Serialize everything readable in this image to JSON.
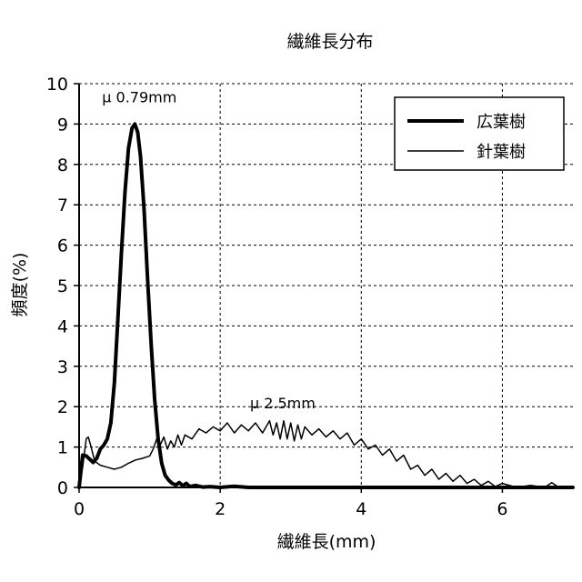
{
  "chart_data": {
    "type": "line",
    "title": "繊維長分布",
    "xlabel": "繊維長(mm)",
    "ylabel": "頻度(%)",
    "xlim": [
      0,
      7
    ],
    "ylim": [
      0,
      10
    ],
    "x_ticks": [
      0,
      2,
      4,
      6
    ],
    "y_ticks": [
      0,
      1,
      2,
      3,
      4,
      5,
      6,
      7,
      8,
      9,
      10
    ],
    "grid": true,
    "legend_position": "top-right",
    "series": [
      {
        "name": "広葉樹",
        "line": "thick",
        "color": "#000000",
        "points": [
          [
            0.0,
            0.0
          ],
          [
            0.05,
            0.8
          ],
          [
            0.1,
            0.78
          ],
          [
            0.15,
            0.7
          ],
          [
            0.2,
            0.62
          ],
          [
            0.25,
            0.72
          ],
          [
            0.3,
            0.95
          ],
          [
            0.35,
            1.05
          ],
          [
            0.4,
            1.2
          ],
          [
            0.45,
            1.6
          ],
          [
            0.5,
            2.6
          ],
          [
            0.55,
            4.2
          ],
          [
            0.6,
            5.8
          ],
          [
            0.65,
            7.3
          ],
          [
            0.7,
            8.4
          ],
          [
            0.75,
            8.9
          ],
          [
            0.79,
            9.0
          ],
          [
            0.83,
            8.8
          ],
          [
            0.87,
            8.2
          ],
          [
            0.92,
            6.9
          ],
          [
            0.97,
            5.2
          ],
          [
            1.02,
            3.6
          ],
          [
            1.07,
            2.2
          ],
          [
            1.12,
            1.2
          ],
          [
            1.17,
            0.6
          ],
          [
            1.22,
            0.3
          ],
          [
            1.27,
            0.18
          ],
          [
            1.32,
            0.1
          ],
          [
            1.37,
            0.06
          ],
          [
            1.42,
            0.12
          ],
          [
            1.47,
            0.04
          ],
          [
            1.52,
            0.1
          ],
          [
            1.57,
            0.02
          ],
          [
            1.65,
            0.05
          ],
          [
            1.75,
            0.01
          ],
          [
            1.85,
            0.02
          ],
          [
            2.0,
            0.0
          ],
          [
            2.2,
            0.03
          ],
          [
            2.4,
            0.0
          ],
          [
            3.0,
            0.0
          ],
          [
            4.0,
            0.0
          ],
          [
            5.0,
            0.0
          ],
          [
            6.0,
            0.0
          ],
          [
            7.0,
            0.0
          ]
        ]
      },
      {
        "name": "針葉樹",
        "line": "thin",
        "color": "#000000",
        "points": [
          [
            0.0,
            0.0
          ],
          [
            0.05,
            0.5
          ],
          [
            0.1,
            1.2
          ],
          [
            0.13,
            1.25
          ],
          [
            0.17,
            1.0
          ],
          [
            0.22,
            0.65
          ],
          [
            0.3,
            0.55
          ],
          [
            0.4,
            0.5
          ],
          [
            0.5,
            0.45
          ],
          [
            0.6,
            0.5
          ],
          [
            0.7,
            0.6
          ],
          [
            0.8,
            0.68
          ],
          [
            0.9,
            0.72
          ],
          [
            1.0,
            0.78
          ],
          [
            1.05,
            0.95
          ],
          [
            1.1,
            1.2
          ],
          [
            1.15,
            1.05
          ],
          [
            1.2,
            1.25
          ],
          [
            1.25,
            0.95
          ],
          [
            1.3,
            1.15
          ],
          [
            1.35,
            1.0
          ],
          [
            1.4,
            1.3
          ],
          [
            1.45,
            1.05
          ],
          [
            1.5,
            1.3
          ],
          [
            1.6,
            1.2
          ],
          [
            1.7,
            1.45
          ],
          [
            1.8,
            1.35
          ],
          [
            1.9,
            1.5
          ],
          [
            2.0,
            1.4
          ],
          [
            2.1,
            1.6
          ],
          [
            2.2,
            1.35
          ],
          [
            2.3,
            1.55
          ],
          [
            2.4,
            1.4
          ],
          [
            2.5,
            1.6
          ],
          [
            2.6,
            1.35
          ],
          [
            2.7,
            1.65
          ],
          [
            2.75,
            1.3
          ],
          [
            2.8,
            1.6
          ],
          [
            2.85,
            1.2
          ],
          [
            2.9,
            1.65
          ],
          [
            2.95,
            1.2
          ],
          [
            3.0,
            1.6
          ],
          [
            3.05,
            1.15
          ],
          [
            3.1,
            1.55
          ],
          [
            3.15,
            1.2
          ],
          [
            3.2,
            1.5
          ],
          [
            3.3,
            1.3
          ],
          [
            3.4,
            1.45
          ],
          [
            3.5,
            1.25
          ],
          [
            3.6,
            1.4
          ],
          [
            3.7,
            1.2
          ],
          [
            3.8,
            1.35
          ],
          [
            3.9,
            1.05
          ],
          [
            4.0,
            1.2
          ],
          [
            4.1,
            0.95
          ],
          [
            4.2,
            1.05
          ],
          [
            4.3,
            0.8
          ],
          [
            4.4,
            0.95
          ],
          [
            4.5,
            0.65
          ],
          [
            4.6,
            0.8
          ],
          [
            4.7,
            0.45
          ],
          [
            4.8,
            0.55
          ],
          [
            4.9,
            0.3
          ],
          [
            5.0,
            0.45
          ],
          [
            5.1,
            0.2
          ],
          [
            5.2,
            0.35
          ],
          [
            5.3,
            0.15
          ],
          [
            5.4,
            0.3
          ],
          [
            5.5,
            0.1
          ],
          [
            5.6,
            0.2
          ],
          [
            5.7,
            0.05
          ],
          [
            5.8,
            0.15
          ],
          [
            5.9,
            0.02
          ],
          [
            6.0,
            0.1
          ],
          [
            6.2,
            0.0
          ],
          [
            6.4,
            0.05
          ],
          [
            6.6,
            0.0
          ],
          [
            6.7,
            0.12
          ],
          [
            6.8,
            0.0
          ],
          [
            7.0,
            0.0
          ]
        ]
      }
    ],
    "annotations": [
      {
        "text": "μ 0.79mm",
        "x": 0.79,
        "y": 9.0,
        "series": "広葉樹"
      },
      {
        "text": "μ 2.5mm",
        "x": 2.5,
        "y": 1.6,
        "series": "針葉樹"
      }
    ]
  }
}
